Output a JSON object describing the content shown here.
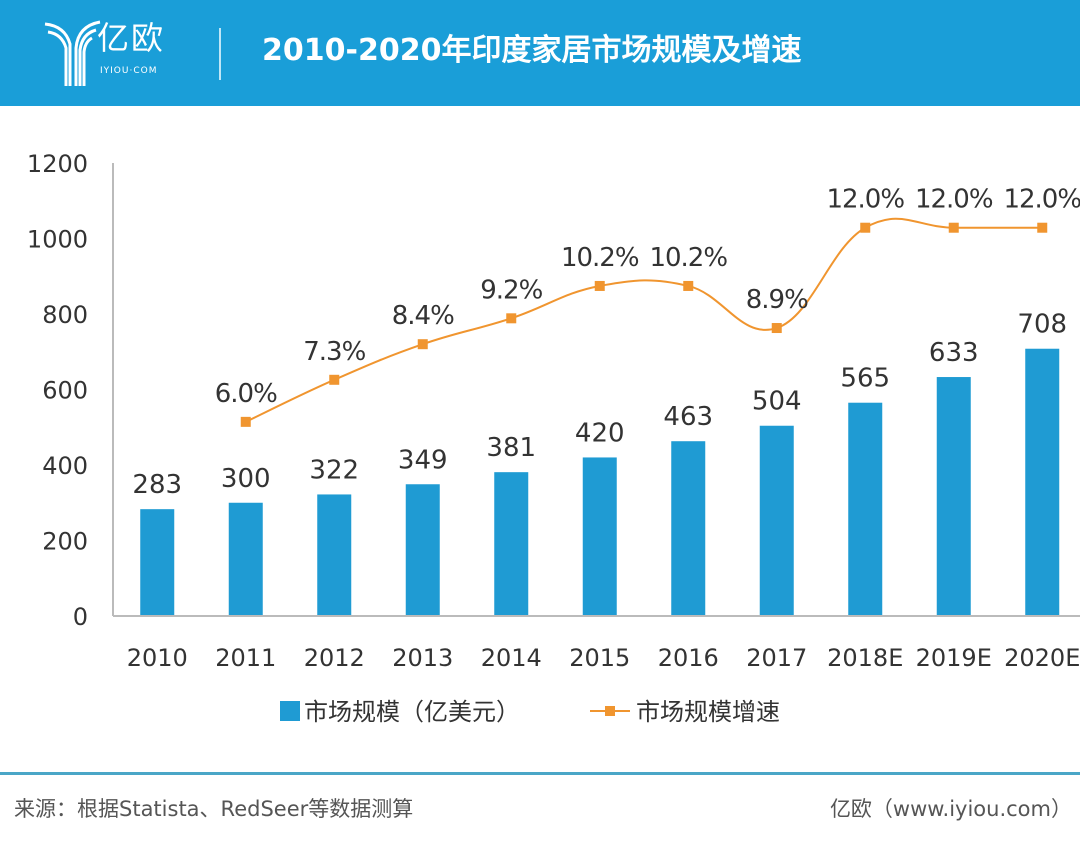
{
  "header": {
    "logo_text": "亿欧",
    "logo_sub": "IYIOU·COM",
    "title": "2010-2020年印度家居市场规模及增速"
  },
  "footer": {
    "source": "来源：根据Statista、RedSeer等数据测算",
    "credit": "亿欧（www.iyiou.com）"
  },
  "colors": {
    "bar": "#1f9bd3",
    "line": "#f0952f",
    "header": "#1a9ed8"
  },
  "chart_data": {
    "type": "bar+line",
    "categories": [
      "2010",
      "2011",
      "2012",
      "2013",
      "2014",
      "2015",
      "2016",
      "2017",
      "2018E",
      "2019E",
      "2020E"
    ],
    "series": [
      {
        "name": "市场规模（亿美元）",
        "type": "bar",
        "axis": "left",
        "values": [
          283,
          300,
          322,
          349,
          381,
          420,
          463,
          504,
          565,
          633,
          708
        ],
        "labels": [
          "283",
          "300",
          "322",
          "349",
          "381",
          "420",
          "463",
          "504",
          "565",
          "633",
          "708"
        ]
      },
      {
        "name": "市场规模增速",
        "type": "line",
        "axis": "right",
        "values": [
          null,
          6.0,
          7.3,
          8.4,
          9.2,
          10.2,
          10.2,
          8.9,
          12.0,
          12.0,
          12.0
        ],
        "labels": [
          "",
          "6.0%",
          "7.3%",
          "8.4%",
          "9.2%",
          "10.2%",
          "10.2%",
          "8.9%",
          "12.0%",
          "12.0%",
          "12.0%"
        ]
      }
    ],
    "ylim": [
      0,
      1200
    ],
    "yticks": [
      "0",
      "200",
      "400",
      "600",
      "800",
      "1000",
      "1200"
    ],
    "y2lim": [
      0,
      14
    ],
    "legend": "bottom"
  }
}
